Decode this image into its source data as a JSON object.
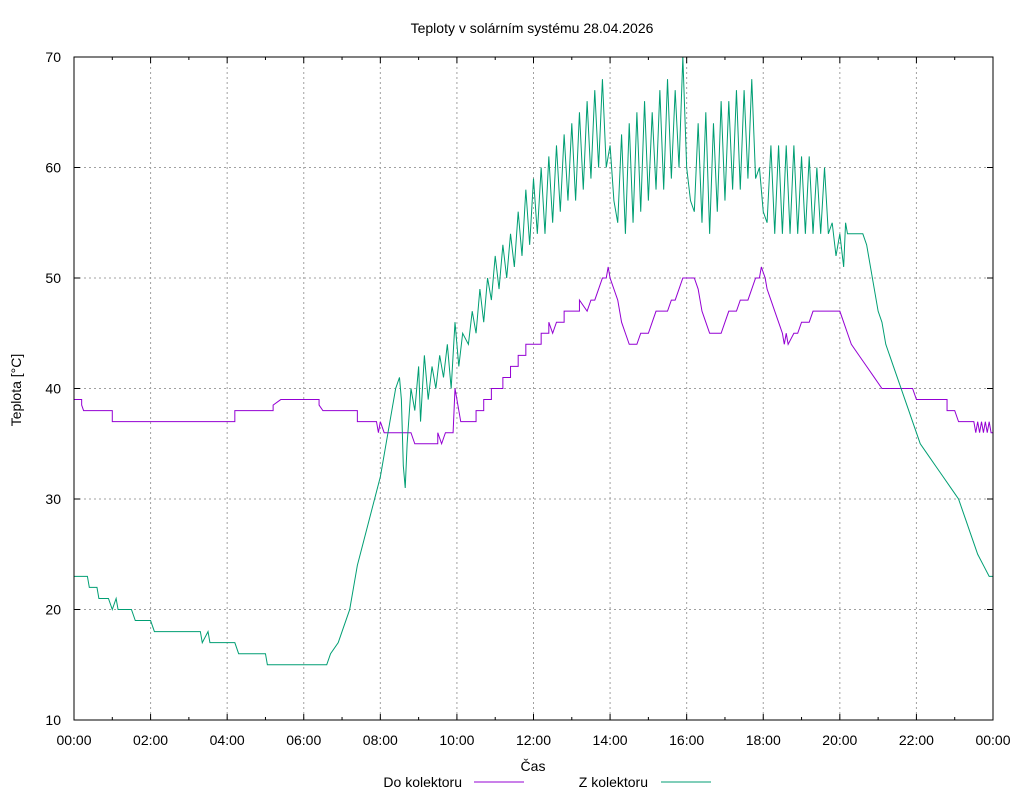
{
  "chart_data": {
    "type": "line",
    "title": "Teploty v solárním systému 28.04.2026",
    "xlabel": "Čas",
    "ylabel": "Teplota [°C]",
    "ylim": [
      10,
      70
    ],
    "xlim": [
      0,
      24
    ],
    "grid": true,
    "legend": "bottom-center",
    "x_tick_labels": [
      "00:00",
      "02:00",
      "04:00",
      "06:00",
      "08:00",
      "10:00",
      "12:00",
      "14:00",
      "16:00",
      "18:00",
      "20:00",
      "22:00",
      "00:00"
    ],
    "y_ticks": [
      10,
      20,
      30,
      40,
      50,
      60,
      70
    ],
    "series": [
      {
        "name": "Do kolektoru",
        "color": "#9400d3",
        "points": [
          [
            0.0,
            39
          ],
          [
            0.2,
            39
          ],
          [
            0.2,
            38.5
          ],
          [
            0.25,
            38
          ],
          [
            1.0,
            38
          ],
          [
            1.0,
            37
          ],
          [
            4.2,
            37
          ],
          [
            4.2,
            38
          ],
          [
            5.2,
            38
          ],
          [
            5.2,
            38.5
          ],
          [
            5.4,
            39
          ],
          [
            6.4,
            39
          ],
          [
            6.4,
            38.5
          ],
          [
            6.5,
            38
          ],
          [
            7.4,
            38
          ],
          [
            7.4,
            37
          ],
          [
            7.9,
            37
          ],
          [
            7.95,
            36
          ],
          [
            8.0,
            37
          ],
          [
            8.1,
            36
          ],
          [
            8.8,
            36
          ],
          [
            8.85,
            35.5
          ],
          [
            8.9,
            35
          ],
          [
            9.5,
            35
          ],
          [
            9.5,
            36
          ],
          [
            9.6,
            35
          ],
          [
            9.7,
            36
          ],
          [
            9.9,
            36
          ],
          [
            9.95,
            40
          ],
          [
            10.05,
            38
          ],
          [
            10.1,
            37
          ],
          [
            10.5,
            37
          ],
          [
            10.5,
            38
          ],
          [
            10.7,
            38
          ],
          [
            10.7,
            39
          ],
          [
            10.9,
            39
          ],
          [
            10.9,
            40
          ],
          [
            11.2,
            40
          ],
          [
            11.2,
            41
          ],
          [
            11.4,
            41
          ],
          [
            11.4,
            42
          ],
          [
            11.6,
            42
          ],
          [
            11.6,
            43
          ],
          [
            11.8,
            43
          ],
          [
            11.8,
            44
          ],
          [
            12.2,
            44
          ],
          [
            12.2,
            45
          ],
          [
            12.4,
            45
          ],
          [
            12.4,
            46
          ],
          [
            12.5,
            45
          ],
          [
            12.6,
            46
          ],
          [
            12.8,
            46
          ],
          [
            12.8,
            47
          ],
          [
            13.2,
            47
          ],
          [
            13.2,
            48
          ],
          [
            13.4,
            47
          ],
          [
            13.5,
            48
          ],
          [
            13.6,
            48
          ],
          [
            13.7,
            49
          ],
          [
            13.8,
            50
          ],
          [
            13.9,
            50
          ],
          [
            13.95,
            51
          ],
          [
            14.0,
            50
          ],
          [
            14.2,
            48
          ],
          [
            14.3,
            46
          ],
          [
            14.4,
            45
          ],
          [
            14.5,
            44
          ],
          [
            14.7,
            44
          ],
          [
            14.8,
            45
          ],
          [
            15.0,
            45
          ],
          [
            15.1,
            46
          ],
          [
            15.2,
            47
          ],
          [
            15.5,
            47
          ],
          [
            15.6,
            48
          ],
          [
            15.7,
            48
          ],
          [
            15.8,
            49
          ],
          [
            15.9,
            50
          ],
          [
            16.2,
            50
          ],
          [
            16.3,
            49
          ],
          [
            16.4,
            47
          ],
          [
            16.5,
            46
          ],
          [
            16.6,
            45
          ],
          [
            16.9,
            45
          ],
          [
            17.0,
            46
          ],
          [
            17.1,
            47
          ],
          [
            17.3,
            47
          ],
          [
            17.4,
            48
          ],
          [
            17.6,
            48
          ],
          [
            17.7,
            49
          ],
          [
            17.8,
            50
          ],
          [
            17.9,
            50
          ],
          [
            17.95,
            51
          ],
          [
            18.05,
            50
          ],
          [
            18.1,
            49
          ],
          [
            18.2,
            48
          ],
          [
            18.3,
            47
          ],
          [
            18.4,
            46
          ],
          [
            18.5,
            45
          ],
          [
            18.55,
            44
          ],
          [
            18.6,
            45
          ],
          [
            18.65,
            44
          ],
          [
            18.8,
            45
          ],
          [
            18.9,
            45
          ],
          [
            19.0,
            46
          ],
          [
            19.2,
            46
          ],
          [
            19.3,
            47
          ],
          [
            20.0,
            47
          ],
          [
            20.1,
            46
          ],
          [
            20.2,
            45
          ],
          [
            20.3,
            44
          ],
          [
            20.5,
            43
          ],
          [
            20.7,
            42
          ],
          [
            20.9,
            41
          ],
          [
            21.1,
            40
          ],
          [
            21.9,
            40
          ],
          [
            22.0,
            39
          ],
          [
            22.8,
            39
          ],
          [
            22.8,
            38
          ],
          [
            23.0,
            38
          ],
          [
            23.1,
            37
          ],
          [
            23.5,
            37
          ],
          [
            23.55,
            36
          ],
          [
            23.6,
            37
          ],
          [
            23.65,
            36
          ],
          [
            23.7,
            37
          ],
          [
            23.75,
            36
          ],
          [
            23.8,
            37
          ],
          [
            23.85,
            36
          ],
          [
            23.9,
            37
          ],
          [
            23.95,
            36
          ],
          [
            24.0,
            36
          ]
        ]
      },
      {
        "name": "Z kolektoru",
        "color": "#009e73",
        "points": [
          [
            0.0,
            23
          ],
          [
            0.35,
            23
          ],
          [
            0.4,
            22
          ],
          [
            0.6,
            22
          ],
          [
            0.65,
            21
          ],
          [
            0.9,
            21
          ],
          [
            1.0,
            20
          ],
          [
            1.1,
            21
          ],
          [
            1.15,
            20
          ],
          [
            1.5,
            20
          ],
          [
            1.6,
            19
          ],
          [
            2.0,
            19
          ],
          [
            2.1,
            18
          ],
          [
            3.3,
            18
          ],
          [
            3.35,
            17
          ],
          [
            3.5,
            18
          ],
          [
            3.55,
            17
          ],
          [
            4.2,
            17
          ],
          [
            4.3,
            16
          ],
          [
            5.0,
            16
          ],
          [
            5.05,
            15
          ],
          [
            6.6,
            15
          ],
          [
            6.7,
            16
          ],
          [
            6.9,
            17
          ],
          [
            7.0,
            18
          ],
          [
            7.1,
            19
          ],
          [
            7.2,
            20
          ],
          [
            7.3,
            22
          ],
          [
            7.4,
            24
          ],
          [
            7.55,
            26
          ],
          [
            7.7,
            28
          ],
          [
            7.85,
            30
          ],
          [
            8.0,
            32
          ],
          [
            8.1,
            34
          ],
          [
            8.2,
            36
          ],
          [
            8.3,
            38
          ],
          [
            8.4,
            40
          ],
          [
            8.5,
            41
          ],
          [
            8.55,
            39
          ],
          [
            8.6,
            33
          ],
          [
            8.65,
            31
          ],
          [
            8.7,
            35
          ],
          [
            8.8,
            40
          ],
          [
            8.9,
            38
          ],
          [
            9.0,
            42
          ],
          [
            9.05,
            37
          ],
          [
            9.15,
            43
          ],
          [
            9.25,
            39
          ],
          [
            9.35,
            42
          ],
          [
            9.45,
            40
          ],
          [
            9.55,
            43
          ],
          [
            9.65,
            41
          ],
          [
            9.75,
            44
          ],
          [
            9.85,
            40
          ],
          [
            9.95,
            46
          ],
          [
            10.05,
            42
          ],
          [
            10.15,
            45
          ],
          [
            10.3,
            44
          ],
          [
            10.4,
            47
          ],
          [
            10.5,
            45
          ],
          [
            10.6,
            49
          ],
          [
            10.7,
            46
          ],
          [
            10.8,
            50
          ],
          [
            10.9,
            48
          ],
          [
            11.0,
            52
          ],
          [
            11.1,
            49
          ],
          [
            11.2,
            53
          ],
          [
            11.3,
            50
          ],
          [
            11.4,
            54
          ],
          [
            11.5,
            51
          ],
          [
            11.6,
            56
          ],
          [
            11.7,
            52
          ],
          [
            11.8,
            58
          ],
          [
            11.9,
            53
          ],
          [
            12.0,
            59
          ],
          [
            12.1,
            54
          ],
          [
            12.2,
            60
          ],
          [
            12.3,
            54
          ],
          [
            12.4,
            61
          ],
          [
            12.5,
            55
          ],
          [
            12.6,
            62
          ],
          [
            12.7,
            56
          ],
          [
            12.8,
            63
          ],
          [
            12.9,
            57
          ],
          [
            13.0,
            64
          ],
          [
            13.1,
            57
          ],
          [
            13.2,
            65
          ],
          [
            13.3,
            58
          ],
          [
            13.4,
            66
          ],
          [
            13.5,
            59
          ],
          [
            13.6,
            67
          ],
          [
            13.7,
            60
          ],
          [
            13.8,
            68
          ],
          [
            13.9,
            60
          ],
          [
            14.0,
            62
          ],
          [
            14.1,
            57
          ],
          [
            14.2,
            55
          ],
          [
            14.3,
            63
          ],
          [
            14.4,
            54
          ],
          [
            14.5,
            64
          ],
          [
            14.6,
            55
          ],
          [
            14.7,
            65
          ],
          [
            14.8,
            56
          ],
          [
            14.9,
            66
          ],
          [
            15.0,
            57
          ],
          [
            15.1,
            65
          ],
          [
            15.2,
            58
          ],
          [
            15.3,
            67
          ],
          [
            15.4,
            58
          ],
          [
            15.5,
            68
          ],
          [
            15.6,
            59
          ],
          [
            15.7,
            67
          ],
          [
            15.8,
            60
          ],
          [
            15.9,
            70
          ],
          [
            16.0,
            60
          ],
          [
            16.1,
            57
          ],
          [
            16.2,
            56
          ],
          [
            16.3,
            64
          ],
          [
            16.4,
            55
          ],
          [
            16.5,
            65
          ],
          [
            16.6,
            54
          ],
          [
            16.7,
            64
          ],
          [
            16.8,
            56
          ],
          [
            16.9,
            66
          ],
          [
            17.0,
            57
          ],
          [
            17.1,
            66
          ],
          [
            17.2,
            58
          ],
          [
            17.3,
            67
          ],
          [
            17.4,
            58
          ],
          [
            17.5,
            67
          ],
          [
            17.6,
            59
          ],
          [
            17.7,
            68
          ],
          [
            17.8,
            59
          ],
          [
            17.9,
            60
          ],
          [
            18.0,
            56
          ],
          [
            18.1,
            55
          ],
          [
            18.2,
            62
          ],
          [
            18.3,
            54
          ],
          [
            18.4,
            62
          ],
          [
            18.5,
            54
          ],
          [
            18.6,
            62
          ],
          [
            18.7,
            54
          ],
          [
            18.8,
            62
          ],
          [
            18.9,
            54
          ],
          [
            19.0,
            61
          ],
          [
            19.1,
            54
          ],
          [
            19.2,
            61
          ],
          [
            19.3,
            54
          ],
          [
            19.4,
            60
          ],
          [
            19.5,
            54
          ],
          [
            19.6,
            60
          ],
          [
            19.7,
            54
          ],
          [
            19.8,
            55
          ],
          [
            19.9,
            52
          ],
          [
            20.0,
            54
          ],
          [
            20.1,
            51
          ],
          [
            20.15,
            55
          ],
          [
            20.2,
            54
          ],
          [
            20.6,
            54
          ],
          [
            20.7,
            53
          ],
          [
            20.8,
            51
          ],
          [
            20.9,
            49
          ],
          [
            21.0,
            47
          ],
          [
            21.1,
            46
          ],
          [
            21.2,
            44
          ],
          [
            21.3,
            43
          ],
          [
            21.4,
            42
          ],
          [
            21.5,
            41
          ],
          [
            21.6,
            40
          ],
          [
            21.7,
            39
          ],
          [
            21.8,
            38
          ],
          [
            21.9,
            37
          ],
          [
            22.0,
            36
          ],
          [
            22.1,
            35
          ],
          [
            22.3,
            34
          ],
          [
            22.5,
            33
          ],
          [
            22.7,
            32
          ],
          [
            22.9,
            31
          ],
          [
            23.1,
            30
          ],
          [
            23.2,
            29
          ],
          [
            23.3,
            28
          ],
          [
            23.4,
            27
          ],
          [
            23.5,
            26
          ],
          [
            23.6,
            25
          ],
          [
            23.75,
            24
          ],
          [
            23.9,
            23
          ],
          [
            24.0,
            23
          ]
        ]
      }
    ]
  }
}
